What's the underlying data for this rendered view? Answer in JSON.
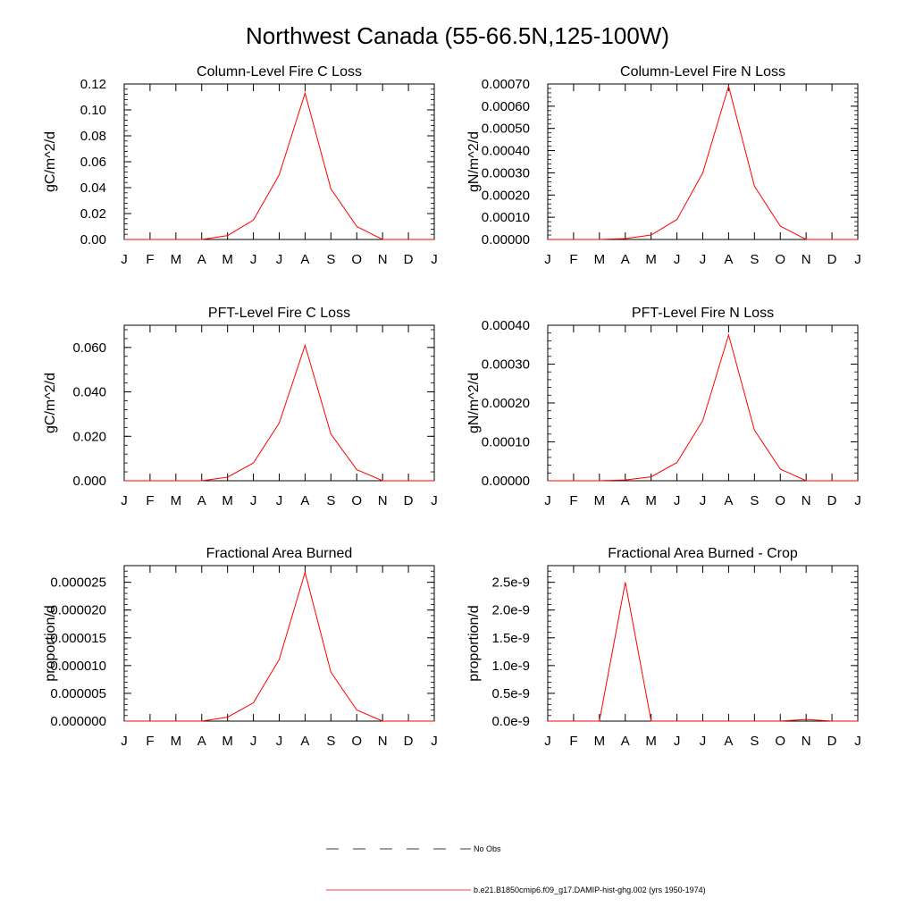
{
  "title": "Northwest Canada (55-66.5N,125-100W)",
  "legend": [
    {
      "label": "No Obs",
      "color": "#000000",
      "dash": true
    },
    {
      "label": "b.e21.B1850cmip6.f09_g17.DAMIP-hist-ghg.002 (yrs 1950-1974)",
      "color": "#ff0000",
      "dash": false
    }
  ],
  "chart_data": [
    {
      "type": "line",
      "title": "Column-Level Fire C Loss",
      "ylabel": "gC/m^2/d",
      "categories": [
        "J",
        "F",
        "M",
        "A",
        "M",
        "J",
        "J",
        "A",
        "S",
        "O",
        "N",
        "D",
        "J"
      ],
      "ylim": [
        0,
        0.12
      ],
      "yticks": [
        0,
        0.02,
        0.04,
        0.06,
        0.08,
        0.1,
        0.12
      ],
      "ytick_labels": [
        "0.00",
        "0.02",
        "0.04",
        "0.06",
        "0.08",
        "0.10",
        "0.12"
      ],
      "series": [
        {
          "color": "#ff0000",
          "values": [
            0,
            0,
            0,
            0,
            0.003,
            0.015,
            0.05,
            0.113,
            0.039,
            0.01,
            0,
            0,
            0
          ]
        }
      ]
    },
    {
      "type": "line",
      "title": "Column-Level Fire N Loss",
      "ylabel": "gN/m^2/d",
      "categories": [
        "J",
        "F",
        "M",
        "A",
        "M",
        "J",
        "J",
        "A",
        "S",
        "O",
        "N",
        "D",
        "J"
      ],
      "ylim": [
        0,
        0.0007
      ],
      "yticks": [
        0,
        0.0001,
        0.0002,
        0.0003,
        0.0004,
        0.0005,
        0.0006,
        0.0007
      ],
      "ytick_labels": [
        "0.00000",
        "0.00010",
        "0.00020",
        "0.00030",
        "0.00040",
        "0.00050",
        "0.00060",
        "0.00070"
      ],
      "series": [
        {
          "color": "#ff0000",
          "values": [
            0,
            0,
            0,
            4e-06,
            2e-05,
            9e-05,
            0.0003,
            0.00069,
            0.00024,
            6e-05,
            0,
            0,
            0
          ]
        }
      ]
    },
    {
      "type": "line",
      "title": "PFT-Level Fire C Loss",
      "ylabel": "gC/m^2/d",
      "categories": [
        "J",
        "F",
        "M",
        "A",
        "M",
        "J",
        "J",
        "A",
        "S",
        "O",
        "N",
        "D",
        "J"
      ],
      "ylim": [
        0,
        0.07
      ],
      "yticks": [
        0,
        0.02,
        0.04,
        0.06
      ],
      "ytick_labels": [
        "0.000",
        "0.020",
        "0.040",
        "0.060"
      ],
      "series": [
        {
          "color": "#ff0000",
          "values": [
            0,
            0,
            0,
            0,
            0.0016,
            0.008,
            0.026,
            0.061,
            0.021,
            0.005,
            0,
            0,
            0
          ]
        }
      ]
    },
    {
      "type": "line",
      "title": "PFT-Level Fire N Loss",
      "ylabel": "gN/m^2/d",
      "categories": [
        "J",
        "F",
        "M",
        "A",
        "M",
        "J",
        "J",
        "A",
        "S",
        "O",
        "N",
        "D",
        "J"
      ],
      "ylim": [
        0,
        0.0004
      ],
      "yticks": [
        0,
        0.0001,
        0.0002,
        0.0003,
        0.0004
      ],
      "ytick_labels": [
        "0.00000",
        "0.00010",
        "0.00020",
        "0.00030",
        "0.00040"
      ],
      "series": [
        {
          "color": "#ff0000",
          "values": [
            0,
            0,
            0,
            2e-06,
            1e-05,
            4.7e-05,
            0.000155,
            0.000375,
            0.00013,
            3e-05,
            0,
            0,
            0
          ]
        }
      ]
    },
    {
      "type": "line",
      "title": "Fractional Area Burned",
      "ylabel": "proportion/d",
      "categories": [
        "J",
        "F",
        "M",
        "A",
        "M",
        "J",
        "J",
        "A",
        "S",
        "O",
        "N",
        "D",
        "J"
      ],
      "ylim": [
        0,
        2.8e-05
      ],
      "yticks": [
        0,
        5e-06,
        1e-05,
        1.5e-05,
        2e-05,
        2.5e-05
      ],
      "ytick_labels": [
        "0.000000",
        "0.000005",
        "0.000010",
        "0.000015",
        "0.000020",
        "0.000025"
      ],
      "series": [
        {
          "color": "#ff0000",
          "values": [
            0,
            0,
            0,
            0,
            7e-07,
            3.3e-06,
            1.11e-05,
            2.68e-05,
            8.8e-06,
            2e-06,
            0,
            0,
            0
          ]
        }
      ]
    },
    {
      "type": "line",
      "title": "Fractional Area Burned - Crop",
      "ylabel": "proportion/d",
      "categories": [
        "J",
        "F",
        "M",
        "A",
        "M",
        "J",
        "J",
        "A",
        "S",
        "O",
        "N",
        "D",
        "J"
      ],
      "ylim": [
        0,
        2.8e-09
      ],
      "yticks": [
        0,
        5e-10,
        1e-09,
        1.5e-09,
        2e-09,
        2.5e-09
      ],
      "ytick_labels": [
        "0.0e-9",
        "0.5e-9",
        "1.0e-9",
        "1.5e-9",
        "2.0e-9",
        "2.5e-9"
      ],
      "series": [
        {
          "color": "#ff0000",
          "values": [
            0,
            0,
            0,
            2.5e-09,
            0,
            0,
            0,
            0,
            0,
            0,
            3e-11,
            0,
            0
          ]
        }
      ]
    }
  ]
}
